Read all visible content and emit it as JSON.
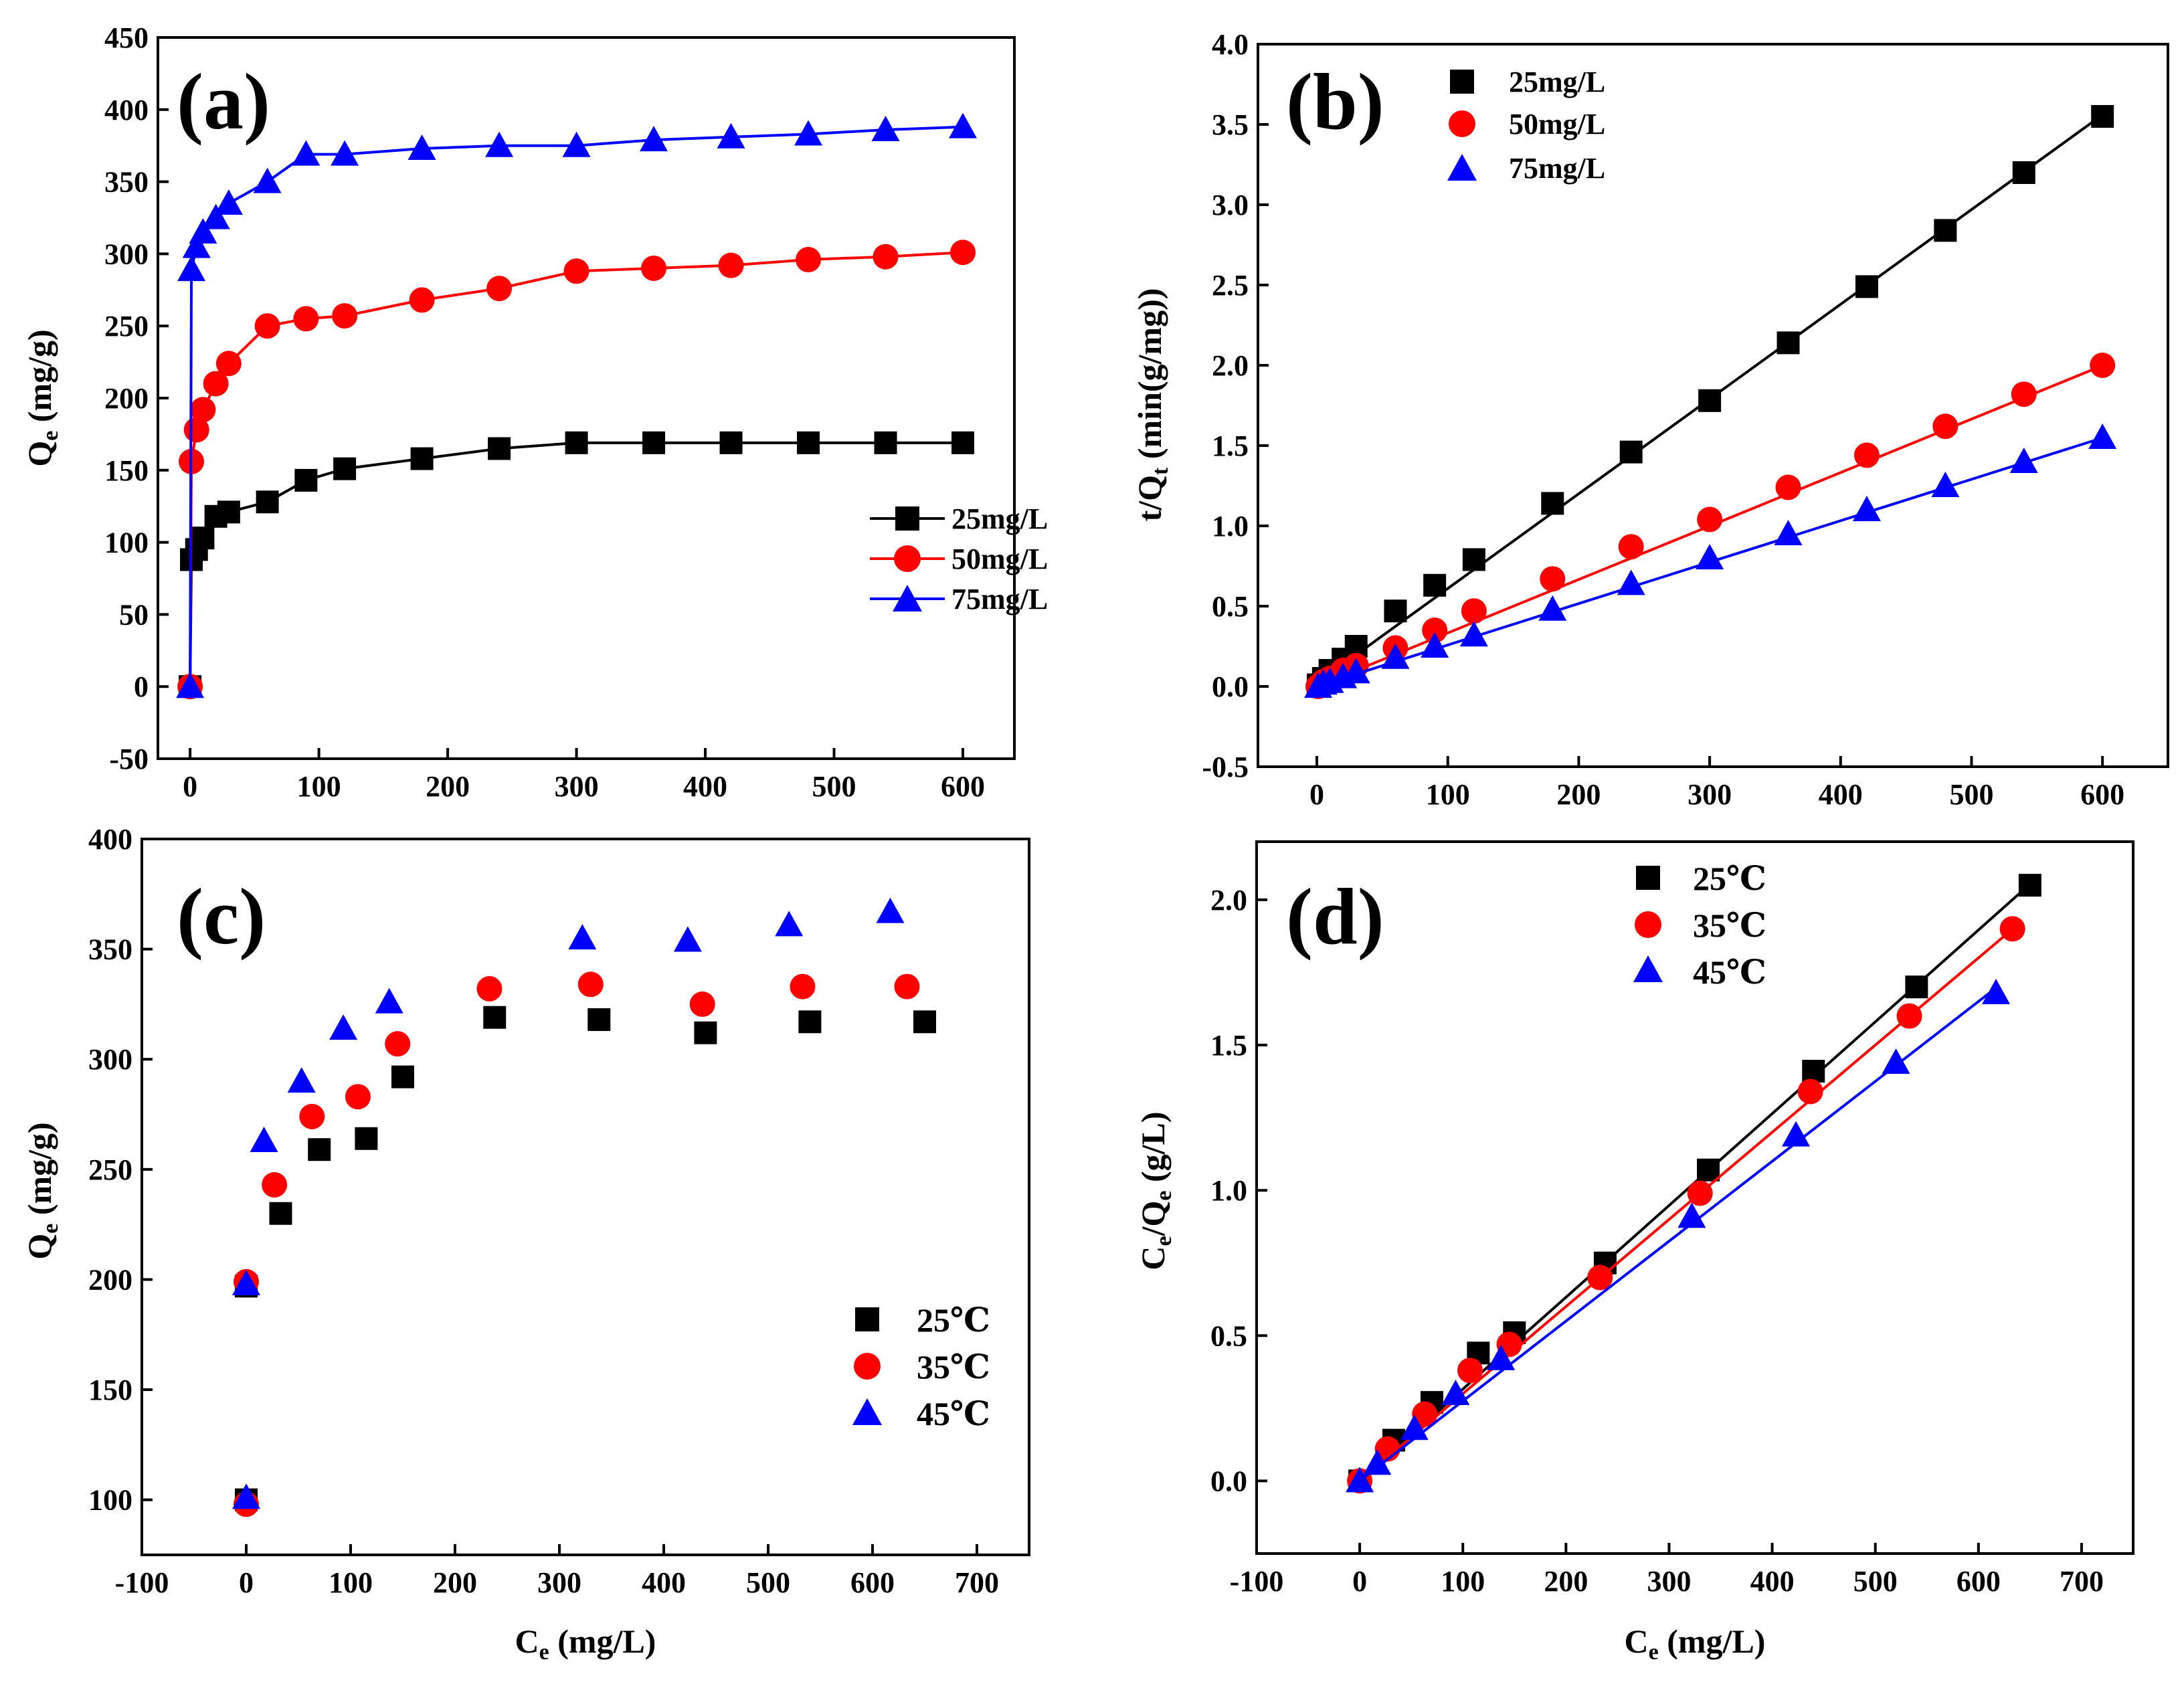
{
  "colors": {
    "s25": "#000000",
    "s50": "#ff0000",
    "s75": "#0000ff"
  },
  "chart_data": [
    {
      "id": "a",
      "panel_label": "(a)",
      "type": "line",
      "xlabel": "",
      "ylabel_main": "Q",
      "ylabel_sub": "e",
      "ylabel_rest": " (mg/g)",
      "xlim": [
        -25,
        640
      ],
      "ylim": [
        -50,
        450
      ],
      "xticks": [
        0,
        100,
        200,
        300,
        400,
        500,
        600
      ],
      "yticks": [
        -50,
        0,
        50,
        100,
        150,
        200,
        250,
        300,
        350,
        400,
        450
      ],
      "legend_position": "center-right",
      "series": [
        {
          "name": "25mg/L",
          "marker": "square",
          "color": "#000000",
          "x": [
            0,
            1,
            5,
            10,
            20,
            30,
            60,
            90,
            120,
            180,
            240,
            300,
            360,
            420,
            480,
            540,
            600
          ],
          "y": [
            0,
            88,
            95,
            103,
            118,
            121,
            128,
            143,
            151,
            158,
            165,
            169,
            169,
            169,
            169,
            169,
            169
          ]
        },
        {
          "name": "50mg/L",
          "marker": "circle",
          "color": "#ff0000",
          "x": [
            0,
            1,
            5,
            10,
            20,
            30,
            60,
            90,
            120,
            180,
            240,
            300,
            360,
            420,
            480,
            540,
            600
          ],
          "y": [
            0,
            156,
            178,
            192,
            210,
            224,
            250,
            255,
            257,
            268,
            276,
            288,
            290,
            292,
            296,
            298,
            301
          ]
        },
        {
          "name": "75mg/L",
          "marker": "triangle",
          "color": "#0000ff",
          "x": [
            0,
            1,
            5,
            10,
            20,
            30,
            60,
            90,
            120,
            180,
            240,
            300,
            360,
            420,
            480,
            540,
            600
          ],
          "y": [
            0,
            289,
            305,
            315,
            325,
            335,
            350,
            369,
            369,
            373,
            375,
            375,
            379,
            381,
            383,
            386,
            388
          ]
        }
      ]
    },
    {
      "id": "b",
      "panel_label": "(b)",
      "type": "scatter",
      "fit": "linear",
      "xlabel": "",
      "ylabel_main": "t/Q",
      "ylabel_sub": "t",
      "ylabel_rest": " (min(g/mg))",
      "xlim": [
        -45,
        650
      ],
      "ylim": [
        -0.5,
        4.0
      ],
      "xticks": [
        0,
        100,
        200,
        300,
        400,
        500,
        600
      ],
      "yticks": [
        "-0.5",
        "0.0",
        "0.5",
        "1.0",
        "1.5",
        "2.0",
        "2.5",
        "3.0",
        "3.5",
        "4.0"
      ],
      "legend_position": "top-left",
      "series": [
        {
          "name": "25mg/L",
          "marker": "square",
          "color": "#000000",
          "x": [
            1,
            5,
            10,
            20,
            30,
            60,
            90,
            120,
            180,
            240,
            300,
            360,
            420,
            480,
            540,
            600
          ],
          "y": [
            0.01,
            0.05,
            0.1,
            0.17,
            0.25,
            0.47,
            0.63,
            0.79,
            1.14,
            1.46,
            1.78,
            2.14,
            2.49,
            2.84,
            3.2,
            3.55
          ],
          "fit": [
            0.02,
            0.0059
          ]
        },
        {
          "name": "50mg/L",
          "marker": "circle",
          "color": "#ff0000",
          "x": [
            1,
            5,
            10,
            20,
            30,
            60,
            90,
            120,
            180,
            240,
            300,
            360,
            420,
            480,
            540,
            600
          ],
          "y": [
            0.0,
            0.03,
            0.05,
            0.1,
            0.13,
            0.24,
            0.35,
            0.47,
            0.67,
            0.87,
            1.04,
            1.24,
            1.44,
            1.62,
            1.82,
            2.0
          ],
          "fit": [
            0.0,
            0.00333
          ]
        },
        {
          "name": "75mg/L",
          "marker": "triangle",
          "color": "#0000ff",
          "x": [
            1,
            5,
            10,
            20,
            30,
            60,
            90,
            120,
            180,
            240,
            300,
            360,
            420,
            480,
            540,
            600
          ],
          "y": [
            0.0,
            0.02,
            0.03,
            0.06,
            0.09,
            0.18,
            0.25,
            0.32,
            0.48,
            0.64,
            0.8,
            0.95,
            1.1,
            1.25,
            1.4,
            1.55
          ],
          "fit": [
            0.0,
            0.00258
          ]
        }
      ]
    },
    {
      "id": "c",
      "panel_label": "(c)",
      "type": "scatter",
      "xlabel_main": "C",
      "xlabel_sub": "e",
      "xlabel_rest": " (mg/L)",
      "ylabel_main": "Q",
      "ylabel_sub": "e",
      "ylabel_rest": " (mg/g)",
      "xlim": [
        -100,
        750
      ],
      "ylim": [
        75,
        400
      ],
      "xticks": [
        -100,
        0,
        100,
        200,
        300,
        400,
        500,
        600,
        700
      ],
      "yticks": [
        100,
        150,
        200,
        250,
        300,
        350,
        400
      ],
      "legend_position": "center-right",
      "series": [
        {
          "name": "25℃",
          "marker": "square",
          "color": "#000000",
          "x": [
            0,
            0,
            33,
            70,
            115,
            150,
            238,
            338,
            440,
            540,
            650
          ],
          "y": [
            100,
            197,
            230,
            259,
            264,
            292,
            319,
            318,
            312,
            317,
            317
          ]
        },
        {
          "name": "35℃",
          "marker": "circle",
          "color": "#ff0000",
          "x": [
            0,
            0,
            27,
            63,
            107,
            145,
            233,
            330,
            437,
            533,
            633
          ],
          "y": [
            98,
            199,
            243,
            274,
            283,
            307,
            332,
            334,
            325,
            333,
            333
          ]
        },
        {
          "name": "45℃",
          "marker": "triangle",
          "color": "#0000ff",
          "x": [
            0,
            0,
            17,
            53,
            93,
            137,
            322,
            423,
            520,
            617
          ],
          "y": [
            101,
            198,
            263,
            290,
            314,
            326,
            355,
            354,
            361,
            367
          ]
        }
      ]
    },
    {
      "id": "d",
      "panel_label": "(d)",
      "type": "scatter",
      "fit": "linear",
      "xlabel_main": "C",
      "xlabel_sub": "e",
      "xlabel_rest": " (mg/L)",
      "ylabel_main": "C",
      "ylabel_sub": "e",
      "ylabel_mid": "/Q",
      "ylabel_sub2": "e",
      "ylabel_rest": " (g/L)",
      "xlim": [
        -100,
        750
      ],
      "ylim": [
        -0.25,
        2.2
      ],
      "xticks": [
        -100,
        0,
        100,
        200,
        300,
        400,
        500,
        600,
        700
      ],
      "yticks": [
        "0.0",
        "0.5",
        "1.0",
        "1.5",
        "2.0"
      ],
      "legend_position": "top-left",
      "series": [
        {
          "name": "25℃",
          "marker": "square",
          "color": "#000000",
          "x": [
            0,
            33,
            70,
            115,
            150,
            238,
            338,
            440,
            540,
            650
          ],
          "y": [
            0.0,
            0.14,
            0.27,
            0.44,
            0.51,
            0.75,
            1.07,
            1.41,
            1.7,
            2.05
          ],
          "fit": [
            0.0,
            0.00316
          ]
        },
        {
          "name": "35℃",
          "marker": "circle",
          "color": "#ff0000",
          "x": [
            0,
            27,
            63,
            107,
            145,
            233,
            330,
            437,
            533,
            633
          ],
          "y": [
            0.0,
            0.11,
            0.23,
            0.38,
            0.47,
            0.7,
            0.99,
            1.34,
            1.6,
            1.9
          ],
          "fit": [
            0.0,
            0.003
          ]
        },
        {
          "name": "45℃",
          "marker": "triangle",
          "color": "#0000ff",
          "x": [
            0,
            17,
            53,
            93,
            137,
            322,
            423,
            520,
            617
          ],
          "y": [
            0.0,
            0.06,
            0.18,
            0.3,
            0.42,
            0.91,
            1.19,
            1.44,
            1.68
          ],
          "fit": [
            0.0,
            0.00275
          ]
        }
      ]
    }
  ]
}
